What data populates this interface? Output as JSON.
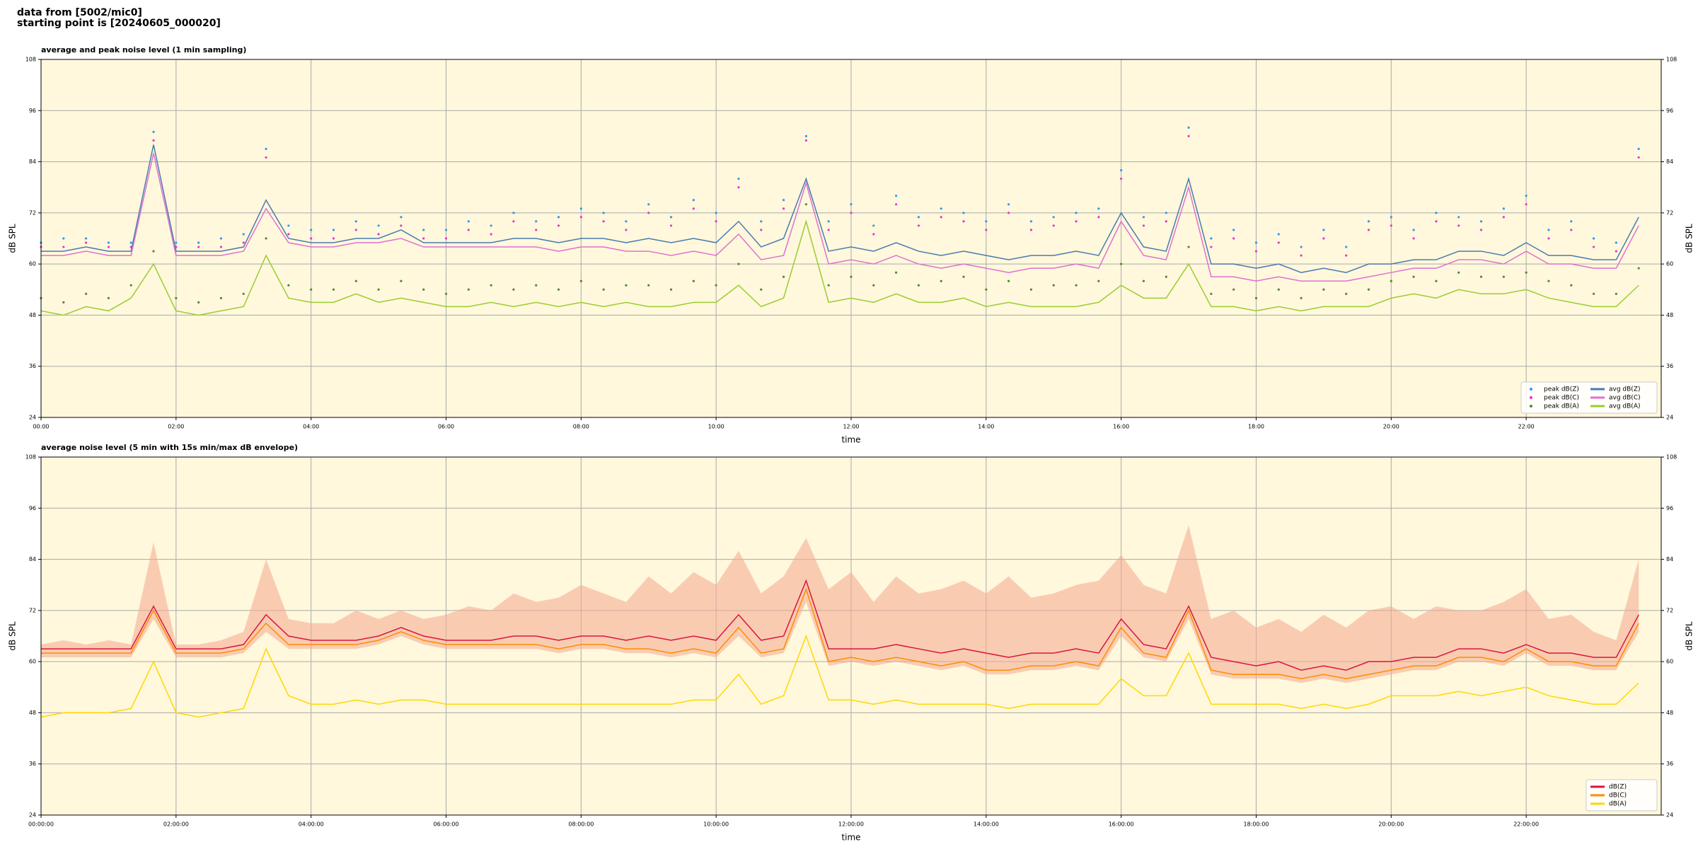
{
  "header": {
    "line1": "data from [5002/mic0]",
    "line2": "starting point is [20240605_000020]"
  },
  "chart_data": [
    {
      "type": "line",
      "title": "average and peak noise level (1 min sampling)",
      "xlabel": "time",
      "ylabel": "dB SPL",
      "legend": "lower right",
      "grid": true,
      "background": "#fff8dc",
      "xlim": [
        0,
        1440
      ],
      "ylim": [
        24,
        108
      ],
      "yticks": [
        24,
        36,
        48,
        60,
        72,
        84,
        96,
        108
      ],
      "xticks": [
        {
          "value": 0,
          "label": "00:00"
        },
        {
          "value": 120,
          "label": "02:00"
        },
        {
          "value": 240,
          "label": "04:00"
        },
        {
          "value": 360,
          "label": "06:00"
        },
        {
          "value": 480,
          "label": "08:00"
        },
        {
          "value": 600,
          "label": "10:00"
        },
        {
          "value": 720,
          "label": "12:00"
        },
        {
          "value": 840,
          "label": "14:00"
        },
        {
          "value": 960,
          "label": "16:00"
        },
        {
          "value": 1080,
          "label": "18:00"
        },
        {
          "value": 1200,
          "label": "20:00"
        },
        {
          "value": 1320,
          "label": "22:00"
        }
      ],
      "x": [
        0,
        20,
        40,
        60,
        80,
        100,
        120,
        140,
        160,
        180,
        200,
        220,
        240,
        260,
        280,
        300,
        320,
        340,
        360,
        380,
        400,
        420,
        440,
        460,
        480,
        500,
        520,
        540,
        560,
        580,
        600,
        620,
        640,
        660,
        680,
        700,
        720,
        740,
        760,
        780,
        800,
        820,
        840,
        860,
        880,
        900,
        920,
        940,
        960,
        980,
        1000,
        1020,
        1040,
        1060,
        1080,
        1100,
        1120,
        1140,
        1160,
        1180,
        1200,
        1220,
        1240,
        1260,
        1280,
        1300,
        1320,
        1340,
        1360,
        1380,
        1400,
        1420
      ],
      "series": [
        {
          "name": "peak dB(Z)",
          "mode": "markers",
          "color": "#3399ee",
          "values": [
            65,
            66,
            66,
            65,
            65,
            91,
            65,
            65,
            66,
            67,
            87,
            69,
            68,
            68,
            70,
            69,
            71,
            68,
            68,
            70,
            69,
            72,
            70,
            71,
            73,
            72,
            70,
            74,
            71,
            75,
            72,
            80,
            70,
            75,
            90,
            70,
            74,
            69,
            76,
            71,
            73,
            72,
            70,
            74,
            70,
            71,
            72,
            73,
            82,
            71,
            72,
            92,
            66,
            68,
            65,
            67,
            64,
            68,
            64,
            70,
            71,
            68,
            72,
            71,
            70,
            73,
            76,
            68,
            70,
            66,
            65,
            87
          ]
        },
        {
          "name": "peak dB(C)",
          "mode": "markers",
          "color": "#ee33cc",
          "values": [
            64,
            64,
            65,
            64,
            64,
            89,
            64,
            64,
            64,
            65,
            85,
            67,
            66,
            66,
            68,
            67,
            69,
            66,
            66,
            68,
            67,
            70,
            68,
            69,
            71,
            70,
            68,
            72,
            69,
            73,
            70,
            78,
            68,
            73,
            89,
            68,
            72,
            67,
            74,
            69,
            71,
            70,
            68,
            72,
            68,
            69,
            70,
            71,
            80,
            69,
            70,
            90,
            64,
            66,
            63,
            65,
            62,
            66,
            62,
            68,
            69,
            66,
            70,
            69,
            68,
            71,
            74,
            66,
            68,
            64,
            63,
            85
          ]
        },
        {
          "name": "peak dB(A)",
          "mode": "markers",
          "color": "#558833",
          "values": [
            52,
            51,
            53,
            52,
            55,
            63,
            52,
            51,
            52,
            53,
            66,
            55,
            54,
            54,
            56,
            54,
            56,
            54,
            53,
            54,
            55,
            54,
            55,
            54,
            56,
            54,
            55,
            55,
            54,
            56,
            55,
            60,
            54,
            57,
            74,
            55,
            57,
            55,
            58,
            55,
            56,
            57,
            54,
            56,
            54,
            55,
            55,
            56,
            60,
            56,
            57,
            64,
            53,
            54,
            52,
            54,
            52,
            54,
            53,
            54,
            56,
            57,
            56,
            58,
            57,
            57,
            58,
            56,
            55,
            53,
            53,
            59
          ]
        },
        {
          "name": "avg dB(Z)",
          "mode": "line",
          "color": "#4a7ab0",
          "values": [
            63,
            63,
            64,
            63,
            63,
            88,
            63,
            63,
            63,
            64,
            75,
            66,
            65,
            65,
            66,
            66,
            68,
            65,
            65,
            65,
            65,
            66,
            66,
            65,
            66,
            66,
            65,
            66,
            65,
            66,
            65,
            70,
            64,
            66,
            80,
            63,
            64,
            63,
            65,
            63,
            62,
            63,
            62,
            61,
            62,
            62,
            63,
            62,
            72,
            64,
            63,
            80,
            60,
            60,
            59,
            60,
            58,
            59,
            58,
            60,
            60,
            61,
            61,
            63,
            63,
            62,
            65,
            62,
            62,
            61,
            61,
            71
          ]
        },
        {
          "name": "avg dB(C)",
          "mode": "line",
          "color": "#e070d0",
          "values": [
            62,
            62,
            63,
            62,
            62,
            86,
            62,
            62,
            62,
            63,
            73,
            65,
            64,
            64,
            65,
            65,
            66,
            64,
            64,
            64,
            64,
            64,
            64,
            63,
            64,
            64,
            63,
            63,
            62,
            63,
            62,
            67,
            61,
            62,
            79,
            60,
            61,
            60,
            62,
            60,
            59,
            60,
            59,
            58,
            59,
            59,
            60,
            59,
            70,
            62,
            61,
            78,
            57,
            57,
            56,
            57,
            56,
            56,
            56,
            57,
            58,
            59,
            59,
            61,
            61,
            60,
            63,
            60,
            60,
            59,
            59,
            69
          ]
        },
        {
          "name": "avg dB(A)",
          "mode": "line",
          "color": "#9acd32",
          "values": [
            49,
            48,
            50,
            49,
            52,
            60,
            49,
            48,
            49,
            50,
            62,
            52,
            51,
            51,
            53,
            51,
            52,
            51,
            50,
            50,
            51,
            50,
            51,
            50,
            51,
            50,
            51,
            50,
            50,
            51,
            51,
            55,
            50,
            52,
            70,
            51,
            52,
            51,
            53,
            51,
            51,
            52,
            50,
            51,
            50,
            50,
            50,
            51,
            55,
            52,
            52,
            60,
            50,
            50,
            49,
            50,
            49,
            50,
            50,
            50,
            52,
            53,
            52,
            54,
            53,
            53,
            54,
            52,
            51,
            50,
            50,
            55
          ]
        }
      ]
    },
    {
      "type": "line",
      "title": "average noise level (5 min with 15s min/max dB envelope)",
      "xlabel": "time",
      "ylabel": "dB SPL",
      "legend": "lower right",
      "grid": true,
      "background": "#fff8dc",
      "xlim": [
        0,
        1440
      ],
      "ylim": [
        24,
        108
      ],
      "yticks": [
        24,
        36,
        48,
        60,
        72,
        84,
        96,
        108
      ],
      "xticks": [
        {
          "value": 0,
          "label": "00:00:00"
        },
        {
          "value": 120,
          "label": "02:00:00"
        },
        {
          "value": 240,
          "label": "04:00:00"
        },
        {
          "value": 360,
          "label": "06:00:00"
        },
        {
          "value": 480,
          "label": "08:00:00"
        },
        {
          "value": 600,
          "label": "10:00:00"
        },
        {
          "value": 720,
          "label": "12:00:00"
        },
        {
          "value": 840,
          "label": "14:00:00"
        },
        {
          "value": 960,
          "label": "16:00:00"
        },
        {
          "value": 1080,
          "label": "18:00:00"
        },
        {
          "value": 1200,
          "label": "20:00:00"
        },
        {
          "value": 1320,
          "label": "22:00:00"
        }
      ],
      "x": [
        0,
        20,
        40,
        60,
        80,
        100,
        120,
        140,
        160,
        180,
        200,
        220,
        240,
        260,
        280,
        300,
        320,
        340,
        360,
        380,
        400,
        420,
        440,
        460,
        480,
        500,
        520,
        540,
        560,
        580,
        600,
        620,
        640,
        660,
        680,
        700,
        720,
        740,
        760,
        780,
        800,
        820,
        840,
        860,
        880,
        900,
        920,
        940,
        960,
        980,
        1000,
        1020,
        1040,
        1060,
        1080,
        1100,
        1120,
        1140,
        1160,
        1180,
        1200,
        1220,
        1240,
        1260,
        1280,
        1300,
        1320,
        1340,
        1360,
        1380,
        1400,
        1420
      ],
      "band": {
        "color": "#f4a890",
        "lower": [
          61,
          61,
          61,
          61,
          61,
          70,
          61,
          61,
          61,
          62,
          67,
          63,
          63,
          63,
          63,
          64,
          66,
          64,
          63,
          63,
          63,
          63,
          63,
          62,
          63,
          63,
          62,
          62,
          61,
          62,
          61,
          66,
          61,
          62,
          74,
          59,
          60,
          59,
          60,
          59,
          58,
          59,
          57,
          57,
          58,
          58,
          59,
          58,
          66,
          61,
          60,
          70,
          57,
          56,
          56,
          56,
          55,
          56,
          55,
          56,
          57,
          58,
          58,
          60,
          60,
          59,
          62,
          59,
          59,
          58,
          58,
          67
        ],
        "upper": [
          64,
          65,
          64,
          65,
          64,
          88,
          64,
          64,
          65,
          67,
          84,
          70,
          69,
          69,
          72,
          70,
          72,
          70,
          71,
          73,
          72,
          76,
          74,
          75,
          78,
          76,
          74,
          80,
          76,
          81,
          78,
          86,
          76,
          80,
          89,
          77,
          81,
          74,
          80,
          76,
          77,
          79,
          76,
          80,
          75,
          76,
          78,
          79,
          85,
          78,
          76,
          92,
          70,
          72,
          68,
          70,
          67,
          71,
          68,
          72,
          73,
          70,
          73,
          72,
          72,
          74,
          77,
          70,
          71,
          67,
          65,
          84
        ]
      },
      "series": [
        {
          "name": "dB(Z)",
          "mode": "line",
          "color": "#dc143c",
          "values": [
            63,
            63,
            63,
            63,
            63,
            73,
            63,
            63,
            63,
            64,
            71,
            66,
            65,
            65,
            65,
            66,
            68,
            66,
            65,
            65,
            65,
            66,
            66,
            65,
            66,
            66,
            65,
            66,
            65,
            66,
            65,
            71,
            65,
            66,
            79,
            63,
            63,
            63,
            64,
            63,
            62,
            63,
            62,
            61,
            62,
            62,
            63,
            62,
            70,
            64,
            63,
            73,
            61,
            60,
            59,
            60,
            58,
            59,
            58,
            60,
            60,
            61,
            61,
            63,
            63,
            62,
            64,
            62,
            62,
            61,
            61,
            71
          ]
        },
        {
          "name": "dB(C)",
          "mode": "line",
          "color": "#ff8c00",
          "values": [
            62,
            62,
            62,
            62,
            62,
            72,
            62,
            62,
            62,
            63,
            69,
            64,
            64,
            64,
            64,
            65,
            67,
            65,
            64,
            64,
            64,
            64,
            64,
            63,
            64,
            64,
            63,
            63,
            62,
            63,
            62,
            68,
            62,
            63,
            77,
            60,
            61,
            60,
            61,
            60,
            59,
            60,
            58,
            58,
            59,
            59,
            60,
            59,
            68,
            62,
            61,
            72,
            58,
            57,
            57,
            57,
            56,
            57,
            56,
            57,
            58,
            59,
            59,
            61,
            61,
            60,
            63,
            60,
            60,
            59,
            59,
            69
          ]
        },
        {
          "name": "dB(A)",
          "mode": "line",
          "color": "#ffd700",
          "values": [
            47,
            48,
            48,
            48,
            49,
            60,
            48,
            47,
            48,
            49,
            63,
            52,
            50,
            50,
            51,
            50,
            51,
            51,
            50,
            50,
            50,
            50,
            50,
            50,
            50,
            50,
            50,
            50,
            50,
            51,
            51,
            57,
            50,
            52,
            66,
            51,
            51,
            50,
            51,
            50,
            50,
            50,
            50,
            49,
            50,
            50,
            50,
            50,
            56,
            52,
            52,
            62,
            50,
            50,
            50,
            50,
            49,
            50,
            49,
            50,
            52,
            52,
            52,
            53,
            52,
            53,
            54,
            52,
            51,
            50,
            50,
            55
          ]
        }
      ]
    }
  ]
}
